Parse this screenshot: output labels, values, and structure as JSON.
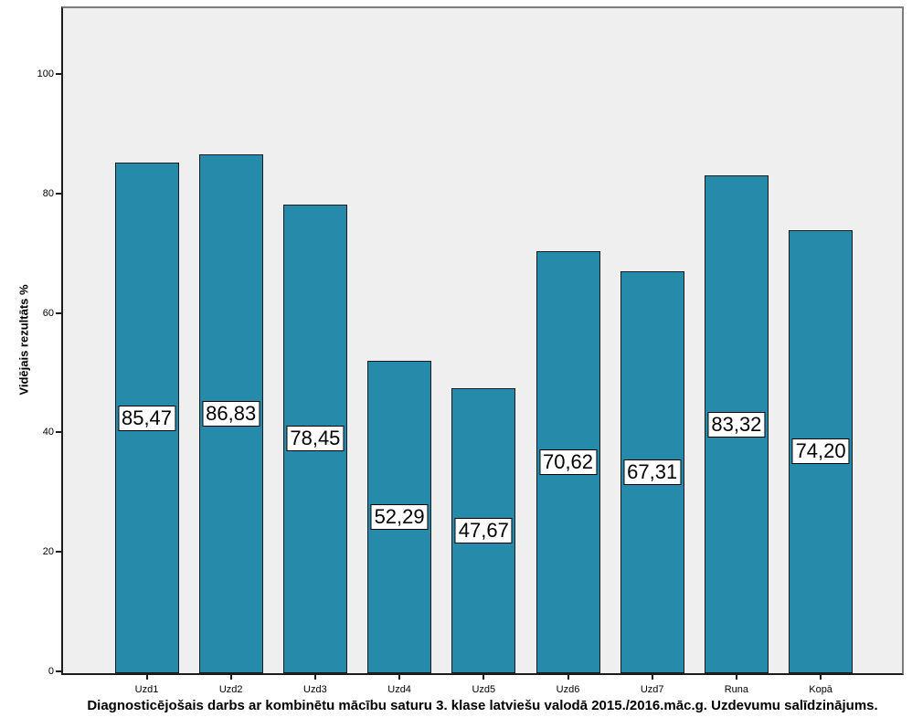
{
  "chart_data": {
    "type": "bar",
    "title": "Diagnosticējošais darbs ar kombinētu mācību saturu 3. klase latviešu valodā 2015./2016.māc.g. Uzdevumu salīdzinājums.",
    "ylabel": "Vidējais rezultāts %",
    "xlabel": "",
    "categories": [
      "Uzd1",
      "Uzd2",
      "Uzd3",
      "Uzd4",
      "Uzd5",
      "Uzd6",
      "Uzd7",
      "Runa",
      "Kopā"
    ],
    "values": [
      85.47,
      86.83,
      78.45,
      52.29,
      47.67,
      70.62,
      67.31,
      83.32,
      74.2
    ],
    "value_labels": [
      "85,47",
      "86,83",
      "78,45",
      "52,29",
      "47,67",
      "70,62",
      "67,31",
      "83,32",
      "74,20"
    ],
    "yticks": [
      0,
      20,
      40,
      60,
      80,
      100
    ],
    "ylim": [
      0,
      111
    ],
    "grid": false,
    "legend_position": "none",
    "colors": {
      "bar_fill": "#268BAA",
      "bar_border": "#1a1a1a",
      "plot_background": "#efefef",
      "outer_background": "#ffffff",
      "frame_top_right": "#7c7c7c",
      "axis_line": "#1c1c1c",
      "value_label_background": "#ffffff",
      "value_label_border": "#000000",
      "text": "#000000"
    }
  }
}
